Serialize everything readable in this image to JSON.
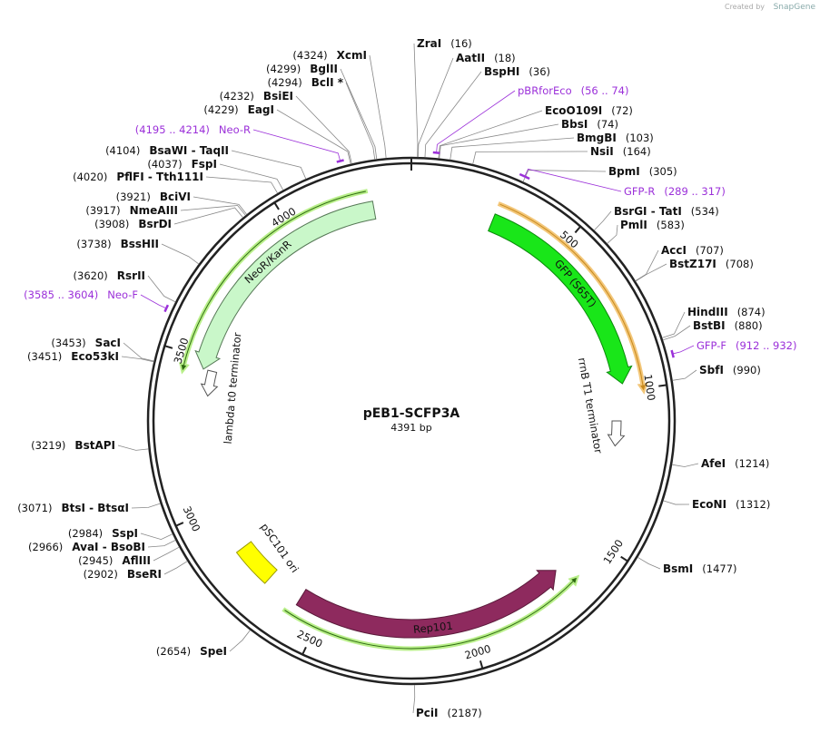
{
  "title": "pEB1-SCFP3A",
  "length": {
    "value": 4391,
    "label": "4391 bp"
  },
  "credit": {
    "prefix": "Created by",
    "brand": "SnapGene"
  },
  "ticks": [
    500,
    1000,
    1500,
    2000,
    2500,
    3000,
    3500,
    4000
  ],
  "features": [
    {
      "name": "GFP (S65T)"
    },
    {
      "name": "NeoR/KanR"
    },
    {
      "name": "Rep101"
    },
    {
      "name": "pSC101 ori"
    },
    {
      "name": "rrnB T1 terminator"
    },
    {
      "name": "lambda t0 terminator"
    }
  ],
  "sites": [
    {
      "name": "ZraI",
      "position": {
        "value": 16,
        "label": "(16)"
      }
    },
    {
      "name": "AatII",
      "position": {
        "value": 18,
        "label": "(18)"
      }
    },
    {
      "name": "BspHI",
      "position": {
        "value": 36,
        "label": "(36)"
      }
    },
    {
      "name": "EcoO109I",
      "position": {
        "value": 72,
        "label": "(72)"
      }
    },
    {
      "name": "BbsI",
      "position": {
        "value": 74,
        "label": "(74)"
      }
    },
    {
      "name": "BmgBI",
      "position": {
        "value": 103,
        "label": "(103)"
      }
    },
    {
      "name": "NsiI",
      "position": {
        "value": 164,
        "label": "(164)"
      }
    },
    {
      "name": "BpmI",
      "position": {
        "value": 305,
        "label": "(305)"
      }
    },
    {
      "name": "BsrGI  - TatI",
      "position": {
        "value": 534,
        "label": "(534)"
      }
    },
    {
      "name": "PmlI",
      "position": {
        "value": 583,
        "label": "(583)"
      }
    },
    {
      "name": "AccI",
      "position": {
        "value": 707,
        "label": "(707)"
      }
    },
    {
      "name": "BstZ17I",
      "position": {
        "value": 708,
        "label": "(708)"
      }
    },
    {
      "name": "HindIII",
      "position": {
        "value": 874,
        "label": "(874)"
      }
    },
    {
      "name": "BstBI",
      "position": {
        "value": 880,
        "label": "(880)"
      }
    },
    {
      "name": "SbfI",
      "position": {
        "value": 990,
        "label": "(990)"
      }
    },
    {
      "name": "AfeI",
      "position": {
        "value": 1214,
        "label": "(1214)"
      }
    },
    {
      "name": "EcoNI",
      "position": {
        "value": 1312,
        "label": "(1312)"
      }
    },
    {
      "name": "BsmI",
      "position": {
        "value": 1477,
        "label": "(1477)"
      }
    },
    {
      "name": "PciI",
      "position": {
        "value": 2187,
        "label": "(2187)"
      }
    },
    {
      "name": "SpeI",
      "position": {
        "value": 2654,
        "label": "(2654)"
      }
    },
    {
      "name": "BseRI",
      "position": {
        "value": 2902,
        "label": "(2902)"
      }
    },
    {
      "name": "AflIII",
      "position": {
        "value": 2945,
        "label": "(2945)"
      }
    },
    {
      "name": "AvaI  - BsoBI",
      "position": {
        "value": 2966,
        "label": "(2966)"
      }
    },
    {
      "name": "SspI",
      "position": {
        "value": 2984,
        "label": "(2984)"
      }
    },
    {
      "name": "BtsI  - BtsαI",
      "position": {
        "value": 3071,
        "label": "(3071)"
      }
    },
    {
      "name": "BstAPI",
      "position": {
        "value": 3219,
        "label": "(3219)"
      }
    },
    {
      "name": "Eco53kI",
      "position": {
        "value": 3451,
        "label": "(3451)"
      }
    },
    {
      "name": "SacI",
      "position": {
        "value": 3453,
        "label": "(3453)"
      }
    },
    {
      "name": "RsrII",
      "position": {
        "value": 3620,
        "label": "(3620)"
      }
    },
    {
      "name": "BssHII",
      "position": {
        "value": 3738,
        "label": "(3738)"
      }
    },
    {
      "name": "BsrDI",
      "position": {
        "value": 3908,
        "label": "(3908)"
      }
    },
    {
      "name": "NmeAIII",
      "position": {
        "value": 3917,
        "label": "(3917)"
      }
    },
    {
      "name": "BciVI",
      "position": {
        "value": 3921,
        "label": "(3921)"
      }
    },
    {
      "name": "PflFI  - Tth111I",
      "position": {
        "value": 4020,
        "label": "(4020)"
      }
    },
    {
      "name": "FspI",
      "position": {
        "value": 4037,
        "label": "(4037)"
      }
    },
    {
      "name": "BsaWI  - TaqII",
      "position": {
        "value": 4104,
        "label": "(4104)"
      }
    },
    {
      "name": "EagI",
      "position": {
        "value": 4229,
        "label": "(4229)"
      }
    },
    {
      "name": "BsiEI",
      "position": {
        "value": 4232,
        "label": "(4232)"
      }
    },
    {
      "name": "BclI *",
      "position": {
        "value": 4294,
        "label": "(4294)"
      }
    },
    {
      "name": "BglII",
      "position": {
        "value": 4299,
        "label": "(4299)"
      }
    },
    {
      "name": "XcmI",
      "position": {
        "value": 4324,
        "label": "(4324)"
      }
    }
  ],
  "primers": [
    {
      "name": "pBRforEco",
      "range": {
        "start": 56,
        "end": 74,
        "label": "(56 .. 74)"
      }
    },
    {
      "name": "GFP-R",
      "range": {
        "start": 289,
        "end": 317,
        "label": "(289 .. 317)"
      }
    },
    {
      "name": "GFP-F",
      "range": {
        "start": 912,
        "end": 932,
        "label": "(912 .. 932)"
      }
    },
    {
      "name": "Neo-F",
      "range": {
        "start": 3585,
        "end": 3604,
        "label": "(3585 .. 3604)"
      }
    },
    {
      "name": "Neo-R",
      "range": {
        "start": 4195,
        "end": 4214,
        "label": "(4195 .. 4214)"
      }
    }
  ]
}
